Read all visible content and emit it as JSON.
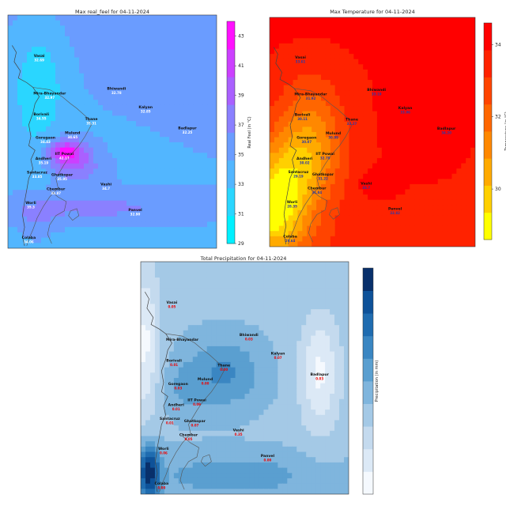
{
  "chart_data": [
    {
      "type": "heatmap",
      "title": "Max real_feel for 04-11-2024",
      "colorbar_label": "Real Feel (in °C)",
      "colorbar_ticks": [
        29,
        31,
        33,
        35,
        37,
        39,
        41,
        43
      ],
      "colorbar_range": [
        29,
        44
      ],
      "colormap": "cool",
      "colors": [
        "#00f0ff",
        "#2ad6ff",
        "#52b6ff",
        "#6a9cff",
        "#8a80ff",
        "#aa60ff",
        "#cc40ff",
        "#ff10ff"
      ],
      "value_color": "#ffffff",
      "locations": [
        {
          "name": "Vasai",
          "value": "32.69"
        },
        {
          "name": "Mira-Bhayandar",
          "value": "32.97"
        },
        {
          "name": "Bhiwandi",
          "value": "32.78"
        },
        {
          "name": "Kalyan",
          "value": "32.85"
        },
        {
          "name": "Borivali",
          "value": "34.55"
        },
        {
          "name": "Thane",
          "value": "35.31"
        },
        {
          "name": "Mulund",
          "value": "34.65"
        },
        {
          "name": "Goregaon",
          "value": "34.43"
        },
        {
          "name": "Badlapur",
          "value": "32.25"
        },
        {
          "name": "IIT Powai",
          "value": "42.17"
        },
        {
          "name": "Andheri",
          "value": "35.19"
        },
        {
          "name": "Santacruz",
          "value": "33.85"
        },
        {
          "name": "Ghatkopar",
          "value": "35.95"
        },
        {
          "name": "Vashi",
          "value": "34.7"
        },
        {
          "name": "Chembur",
          "value": "33.87"
        },
        {
          "name": "Worli",
          "value": "35.3"
        },
        {
          "name": "Panvel",
          "value": "32.90"
        },
        {
          "name": "Colaba",
          "value": "34.06"
        }
      ]
    },
    {
      "type": "heatmap",
      "title": "Max Temperature for 04-11-2024",
      "colorbar_label": "Temperature (in °C)",
      "colorbar_ticks": [
        30,
        32,
        34
      ],
      "colorbar_range": [
        28.6,
        34.6
      ],
      "colormap": "autumn_r",
      "colors": [
        "#ffff00",
        "#ffd000",
        "#ffaa00",
        "#ff8800",
        "#ff6600",
        "#ff4400",
        "#ff2200",
        "#ff0000"
      ],
      "value_color": "#2c3aa8",
      "locations": [
        {
          "name": "Vasai",
          "value": "33.61"
        },
        {
          "name": "Mira-Bhayandar",
          "value": "31.92"
        },
        {
          "name": "Bhiwandi",
          "value": "33.19"
        },
        {
          "name": "Kalyan",
          "value": "33.96"
        },
        {
          "name": "Borivali",
          "value": "30.11"
        },
        {
          "name": "Thane",
          "value": "32.27"
        },
        {
          "name": "Mulund",
          "value": "30.99"
        },
        {
          "name": "Goregaon",
          "value": "30.07"
        },
        {
          "name": "Badlapur",
          "value": "34.20"
        },
        {
          "name": "IIT Powai",
          "value": "32.79"
        },
        {
          "name": "Andheri",
          "value": "30.02"
        },
        {
          "name": "Santacruz",
          "value": "29.19"
        },
        {
          "name": "Ghatkopar",
          "value": "31.22"
        },
        {
          "name": "Vashi",
          "value": "33.7"
        },
        {
          "name": "Chembur",
          "value": "31.84"
        },
        {
          "name": "Worli",
          "value": "28.35"
        },
        {
          "name": "Panvel",
          "value": "33.82"
        },
        {
          "name": "Colaba",
          "value": "29.64"
        }
      ]
    },
    {
      "type": "heatmap",
      "title": "Total Precipitation for 04-11-2024",
      "colorbar_label": "Precipitation (in mm)",
      "colorbar_ticks": [],
      "colorbar_range": [
        0,
        1
      ],
      "colormap": "Blues",
      "colors": [
        "#f5f9fe",
        "#dce9f6",
        "#c4daee",
        "#a4c9e6",
        "#7fb5dd",
        "#5a9fd0",
        "#3a86c2",
        "#1f6cb0",
        "#0e5299",
        "#08306b"
      ],
      "value_color": "#ee0000",
      "locations": [
        {
          "name": "Vasai",
          "value": "0.05"
        },
        {
          "name": "Mira-Bhayandar",
          "value": ""
        },
        {
          "name": "Bhiwandi",
          "value": "0.03"
        },
        {
          "name": "Kalyan",
          "value": "0.07"
        },
        {
          "name": "Borivali",
          "value": "0.01"
        },
        {
          "name": "Thane",
          "value": "0.00"
        },
        {
          "name": "Mulund",
          "value": "0.00"
        },
        {
          "name": "Goregaon",
          "value": "0.03"
        },
        {
          "name": "Badlapur",
          "value": "0.03"
        },
        {
          "name": "IIT Powai",
          "value": "0.09"
        },
        {
          "name": "Andheri",
          "value": "0.01"
        },
        {
          "name": "Santacruz",
          "value": "0.01"
        },
        {
          "name": "Ghatkopar",
          "value": "0.07"
        },
        {
          "name": "Vashi",
          "value": "0.35"
        },
        {
          "name": "Chembur",
          "value": "0.05"
        },
        {
          "name": "Worli",
          "value": "0.06"
        },
        {
          "name": "Panvel",
          "value": "0.00"
        },
        {
          "name": "Colaba",
          "value": "0.00"
        }
      ]
    }
  ]
}
